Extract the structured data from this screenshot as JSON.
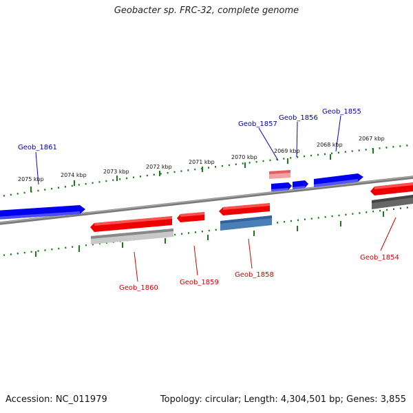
{
  "title": "Geobacter sp. FRC-32, complete genome",
  "footer": {
    "accession": "Accession: NC_011979",
    "topology": "Topology: circular; Length: 4,304,501 bp; Genes: 3,855"
  },
  "scale_labels": [
    "2067 kbp",
    "2068 kbp",
    "2069 kbp",
    "2070 kbp",
    "2071 kbp",
    "2072 kbp",
    "2073 kbp",
    "2074 kbp",
    "2075 kbp"
  ],
  "gene_labels": {
    "forward": [
      "Geob_1861",
      "Geob_1857",
      "Geob_1856",
      "Geob_1855"
    ],
    "reverse": [
      "Geob_1860",
      "Geob_1859",
      "Geob_1858",
      "Geob_1854"
    ]
  },
  "colors": {
    "forward_gene": "#0000ee",
    "reverse_gene": "#ee0000",
    "forward_label": "#0000aa",
    "reverse_label": "#cc0000",
    "backbone": "#7a7a7a",
    "tick": "#1a7a1a"
  }
}
